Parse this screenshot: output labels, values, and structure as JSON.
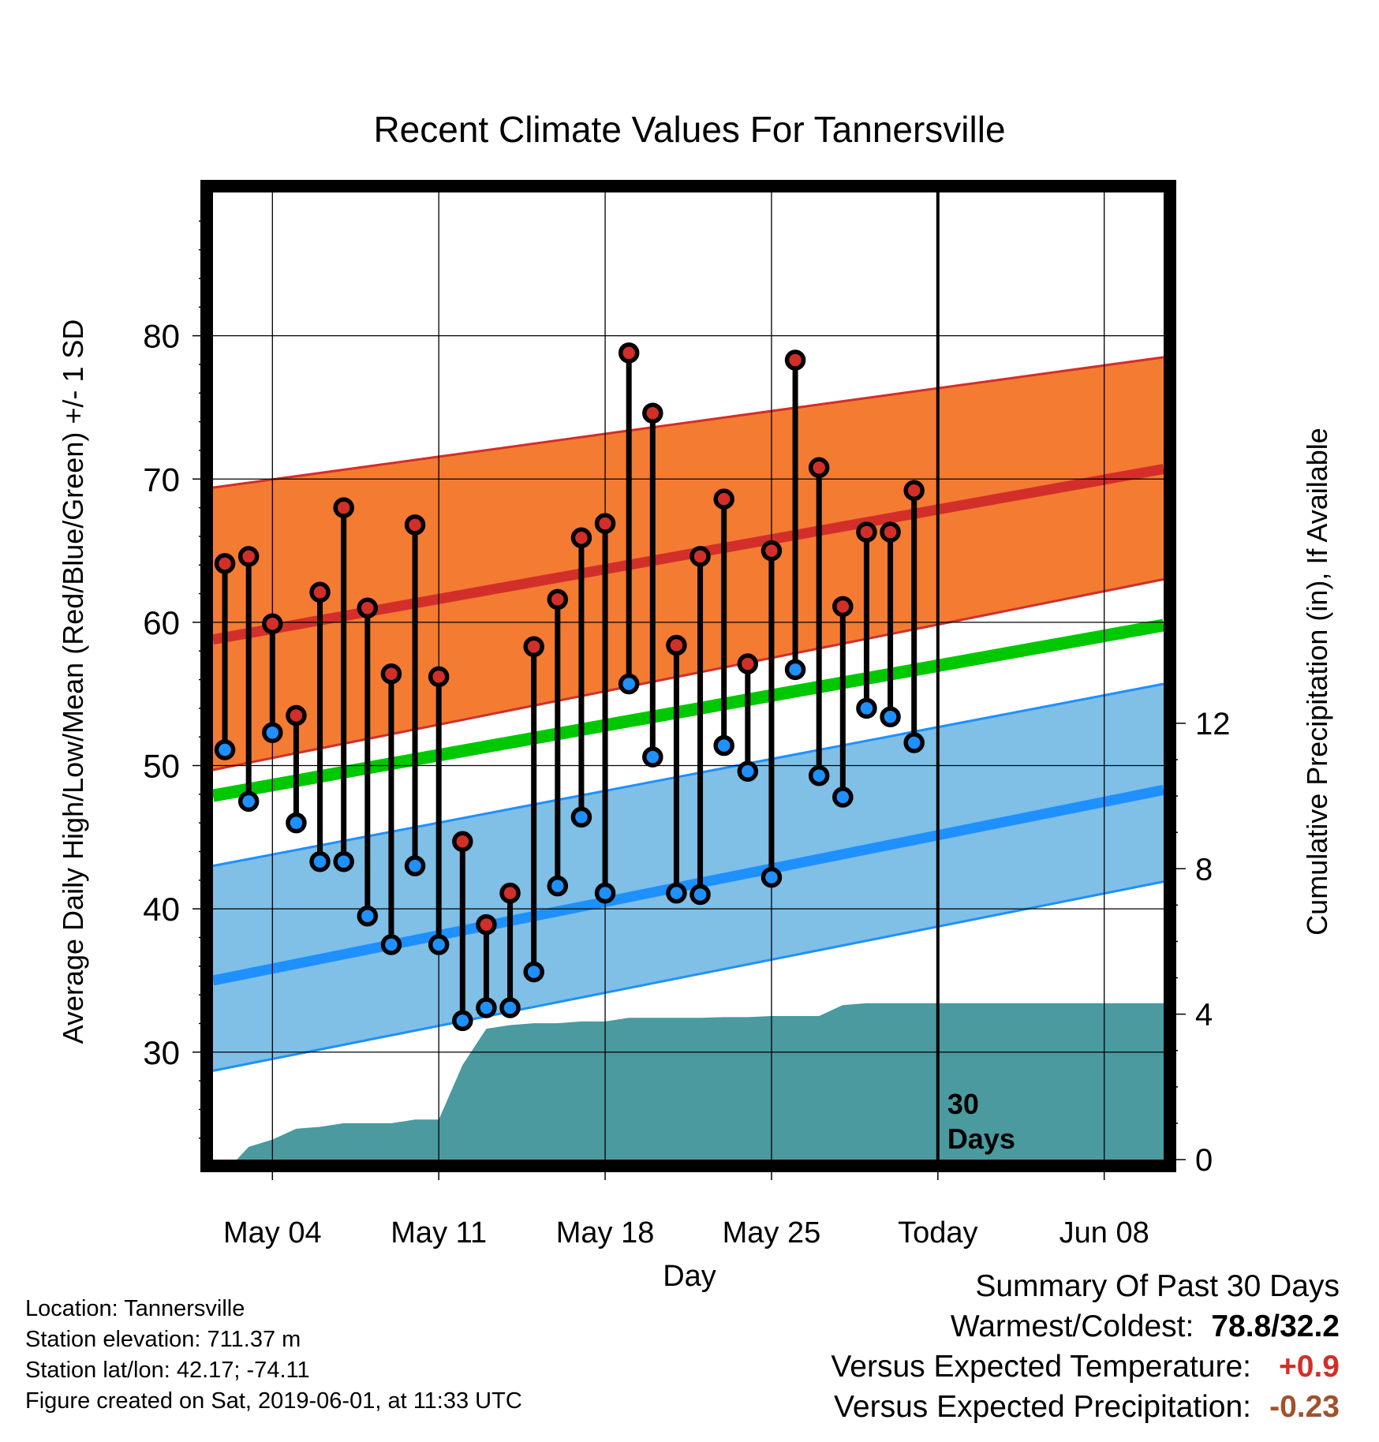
{
  "chart_data": {
    "type": "line",
    "title": "Recent Climate Values For Tannersville",
    "xlabel": "Day",
    "ylabel_left": "Average Daily High/Low/Mean (Red/Blue/Green) +/- 1 SD",
    "ylabel_right": "Cumulative Precipitation (in), If Available",
    "x_tick_labels": [
      "May 04",
      "May 11",
      "May 18",
      "May 25",
      "Today",
      "Jun 08"
    ],
    "x_tick_days": [
      4,
      11,
      18,
      25,
      32,
      39
    ],
    "x_range_days": [
      1.5,
      41.5
    ],
    "today_day": 32,
    "today_label_line1": "30",
    "today_label_line2": "Days",
    "ylim_left": [
      22.5,
      90
    ],
    "y_ticks_left": [
      "30",
      "40",
      "50",
      "60",
      "70",
      "80"
    ],
    "ylim_right": [
      0,
      26.6
    ],
    "y_ticks_right": [
      "0",
      "4",
      "8",
      "12"
    ],
    "grid": true,
    "colors": {
      "high_band": "#f47b32",
      "high_mean": "#d22f2a",
      "low_band": "#80bfe6",
      "low_mean": "#1e90ff",
      "mean": "#00c800",
      "precip": "#4a9aa0",
      "high_dot": "#d22f2a",
      "low_dot": "#1e90ff",
      "positive": "#d22f2a",
      "negative": "#a0522d"
    },
    "normals": {
      "days": [
        1.5,
        41.5
      ],
      "high_upper": [
        69.4,
        78.5
      ],
      "high_mean": [
        58.8,
        70.7
      ],
      "high_lower": [
        49.7,
        63.0
      ],
      "mean": [
        47.9,
        59.8
      ],
      "low_upper": [
        43.0,
        55.7
      ],
      "low_mean": [
        35.0,
        48.3
      ],
      "low_lower": [
        28.7,
        41.9
      ]
    },
    "series": [
      {
        "name": "High",
        "days": [
          2,
          3,
          4,
          5,
          6,
          7,
          8,
          9,
          10,
          11,
          12,
          13,
          14,
          15,
          16,
          17,
          18,
          19,
          20,
          21,
          22,
          23,
          24,
          25,
          26,
          27,
          28,
          29,
          30,
          31
        ],
        "values": [
          64.1,
          64.6,
          59.9,
          53.5,
          62.1,
          68.0,
          61.0,
          56.4,
          66.8,
          56.2,
          44.7,
          38.9,
          41.1,
          58.3,
          61.6,
          65.9,
          66.9,
          78.8,
          74.6,
          58.4,
          64.6,
          68.6,
          57.1,
          65.0,
          78.3,
          70.8,
          61.1,
          66.3,
          66.3,
          69.2
        ]
      },
      {
        "name": "Low",
        "days": [
          2,
          3,
          4,
          5,
          6,
          7,
          8,
          9,
          10,
          11,
          12,
          13,
          14,
          15,
          16,
          17,
          18,
          19,
          20,
          21,
          22,
          23,
          24,
          25,
          26,
          27,
          28,
          29,
          30,
          31
        ],
        "values": [
          51.1,
          47.5,
          52.3,
          46.0,
          43.3,
          43.3,
          39.5,
          37.5,
          43.0,
          37.5,
          32.2,
          33.1,
          33.1,
          35.6,
          41.6,
          46.4,
          41.1,
          55.7,
          50.6,
          41.1,
          41.0,
          51.4,
          49.6,
          42.2,
          56.7,
          49.3,
          47.8,
          54.0,
          53.4,
          51.6
        ]
      },
      {
        "name": "Cumulative Precipitation",
        "days": [
          1.5,
          2.5,
          3,
          4,
          5,
          6,
          7,
          8,
          9,
          10,
          11,
          12,
          13,
          14,
          15,
          16,
          17,
          18,
          19,
          20,
          21,
          22,
          23,
          24,
          25,
          26,
          27,
          28,
          29,
          30,
          41.5
        ],
        "values": [
          0,
          0,
          0.35,
          0.55,
          0.85,
          0.9,
          1.0,
          1.0,
          1.0,
          1.1,
          1.1,
          2.6,
          3.6,
          3.7,
          3.75,
          3.75,
          3.8,
          3.8,
          3.9,
          3.9,
          3.9,
          3.9,
          3.92,
          3.92,
          3.95,
          3.95,
          3.95,
          4.25,
          4.3,
          4.3,
          4.3
        ]
      }
    ]
  },
  "info": {
    "location": "Location: Tannersville",
    "elevation": "Station elevation: 711.37 m",
    "latlon": "Station lat/lon: 42.17; -74.11",
    "created": "Figure created on Sat, 2019-06-01, at 11:33 UTC"
  },
  "summary": {
    "heading": "Summary Of Past 30 Days",
    "warm_cold_label": "Warmest/Coldest:",
    "warm_cold_value": "78.8/32.2",
    "temp_label": "Versus Expected Temperature:",
    "temp_value": "+0.9",
    "precip_label": "Versus Expected Precipitation:",
    "precip_value": "-0.23"
  }
}
